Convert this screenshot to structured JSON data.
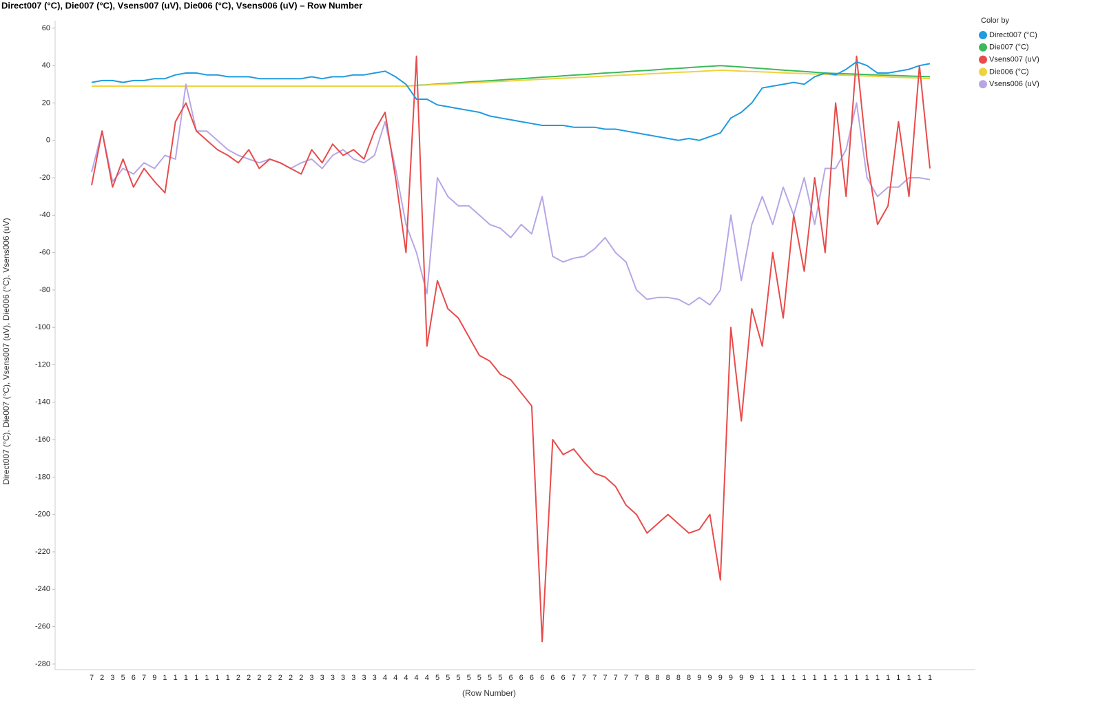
{
  "chart_data": {
    "type": "line",
    "title": "Direct007 (°C), Die007 (°C), Vsens007 (uV), Die006 (°C), Vsens006 (uV) – Row Number",
    "xlabel": "(Row Number)",
    "ylabel": "Direct007 (°C), Die007 (°C), Vsens007 (uV), Die006 (°C), Vsens006 (uV)",
    "legend_title": "Color by",
    "legend_position": "upper right",
    "ylim": [
      -283,
      64
    ],
    "yticks": [
      60,
      40,
      20,
      0,
      -20,
      -40,
      -60,
      -80,
      -100,
      -120,
      -140,
      -160,
      -180,
      -200,
      -220,
      -240,
      -260,
      -280
    ],
    "categories": [
      "7",
      "2",
      "3",
      "5",
      "6",
      "7",
      "9",
      "1",
      "1",
      "1",
      "1",
      "1",
      "1",
      "1",
      "2",
      "2",
      "2",
      "2",
      "2",
      "2",
      "2",
      "3",
      "3",
      "3",
      "3",
      "3",
      "3",
      "3",
      "4",
      "4",
      "4",
      "4",
      "4",
      "5",
      "5",
      "5",
      "5",
      "5",
      "5",
      "5",
      "6",
      "6",
      "6",
      "6",
      "6",
      "6",
      "7",
      "7",
      "7",
      "7",
      "7",
      "7",
      "7",
      "8",
      "8",
      "8",
      "8",
      "8",
      "9",
      "9",
      "9",
      "9",
      "9",
      "9",
      "1",
      "1",
      "1",
      "1",
      "1",
      "1",
      "1",
      "1",
      "1",
      "1",
      "1",
      "1",
      "1",
      "1",
      "1",
      "1",
      "1"
    ],
    "series": [
      {
        "name": "Direct007 (°C)",
        "color": "#1f9be0",
        "values": [
          31,
          32,
          32,
          31,
          32,
          32,
          33,
          33,
          35,
          36,
          36,
          35,
          35,
          34,
          34,
          34,
          33,
          33,
          33,
          33,
          33,
          34,
          33,
          34,
          34,
          35,
          35,
          36,
          37,
          34,
          30,
          22,
          22,
          19,
          18,
          17,
          16,
          15,
          13,
          12,
          11,
          10,
          9,
          8,
          8,
          8,
          7,
          7,
          7,
          6,
          6,
          5,
          4,
          3,
          2,
          1,
          0,
          1,
          0,
          2,
          4,
          12,
          15,
          20,
          28,
          29,
          30,
          31,
          30,
          34,
          36,
          35,
          38,
          42,
          40,
          36,
          36,
          37,
          38,
          40,
          41
        ]
      },
      {
        "name": "Die007 (°C)",
        "color": "#3cb95a",
        "values": [
          29,
          29,
          29,
          29,
          29,
          29,
          29,
          29,
          29,
          29,
          29,
          29,
          29,
          29,
          29,
          29,
          29,
          29,
          29,
          29,
          29,
          29,
          29,
          29,
          29,
          29,
          29,
          29,
          29,
          29,
          29,
          29.4,
          29.7,
          30.1,
          30.5,
          30.8,
          31.2,
          31.6,
          31.9,
          32.3,
          32.7,
          33,
          33.4,
          33.8,
          34.1,
          34.5,
          34.9,
          35.2,
          35.6,
          36,
          36.3,
          36.7,
          37.1,
          37.4,
          37.8,
          38.2,
          38.5,
          38.9,
          39.3,
          39.6,
          40,
          39.6,
          39.2,
          38.8,
          38.4,
          38,
          37.6,
          37.2,
          36.8,
          36.4,
          36,
          35.8,
          35.6,
          35.4,
          35.2,
          35,
          34.8,
          34.6,
          34.4,
          34.2,
          34
        ]
      },
      {
        "name": "Vsens007 (uV)",
        "color": "#e84b4b",
        "values": [
          -24,
          5,
          -25,
          -10,
          -25,
          -15,
          -22,
          -28,
          10,
          20,
          5,
          0,
          -5,
          -8,
          -12,
          -5,
          -15,
          -10,
          -12,
          -15,
          -18,
          -5,
          -12,
          -2,
          -8,
          -5,
          -10,
          5,
          15,
          -20,
          -60,
          45,
          -110,
          -75,
          -90,
          -95,
          -105,
          -115,
          -118,
          -125,
          -128,
          -135,
          -142,
          -268,
          -160,
          -168,
          -165,
          -172,
          -178,
          -180,
          -185,
          -195,
          -200,
          -210,
          -205,
          -200,
          -205,
          -210,
          -208,
          -200,
          -235,
          -100,
          -150,
          -90,
          -110,
          -60,
          -95,
          -40,
          -70,
          -20,
          -60,
          20,
          -30,
          45,
          -10,
          -45,
          -35,
          10,
          -30,
          40,
          -15
        ]
      },
      {
        "name": "Die006 (°C)",
        "color": "#f0d23c",
        "values": [
          29,
          29,
          29,
          29,
          29,
          29,
          29,
          29,
          29,
          29,
          29,
          29,
          29,
          29,
          29,
          29,
          29,
          29,
          29,
          29,
          29,
          29,
          29,
          29,
          29,
          29,
          29,
          29,
          29,
          29,
          29,
          29.3,
          29.6,
          29.8,
          30.1,
          30.4,
          30.7,
          31,
          31.3,
          31.5,
          31.8,
          32.1,
          32.4,
          32.7,
          33,
          33.2,
          33.5,
          33.8,
          34.1,
          34.4,
          34.7,
          34.9,
          35.2,
          35.5,
          35.8,
          36.1,
          36.4,
          36.6,
          36.9,
          37.2,
          37.5,
          37.3,
          37,
          36.8,
          36.6,
          36.4,
          36.1,
          35.9,
          35.7,
          35.5,
          35.3,
          35,
          34.8,
          34.6,
          34.4,
          34.2,
          33.9,
          33.7,
          33.5,
          33.3,
          33
        ]
      },
      {
        "name": "Vsens006 (uV)",
        "color": "#b7a6e6",
        "values": [
          -17,
          5,
          -22,
          -15,
          -18,
          -12,
          -15,
          -8,
          -10,
          30,
          5,
          5,
          0,
          -5,
          -8,
          -10,
          -12,
          -10,
          -12,
          -15,
          -12,
          -10,
          -15,
          -8,
          -5,
          -10,
          -12,
          -8,
          10,
          -15,
          -45,
          -60,
          -82,
          -20,
          -30,
          -35,
          -35,
          -40,
          -45,
          -47,
          -52,
          -45,
          -50,
          -30,
          -62,
          -65,
          -63,
          -62,
          -58,
          -52,
          -60,
          -65,
          -80,
          -85,
          -84,
          -84,
          -85,
          -88,
          -84,
          -88,
          -80,
          -40,
          -75,
          -45,
          -30,
          -45,
          -25,
          -40,
          -20,
          -45,
          -15,
          -15,
          -5,
          20,
          -20,
          -30,
          -25,
          -25,
          -20,
          -20,
          -21
        ]
      }
    ]
  }
}
